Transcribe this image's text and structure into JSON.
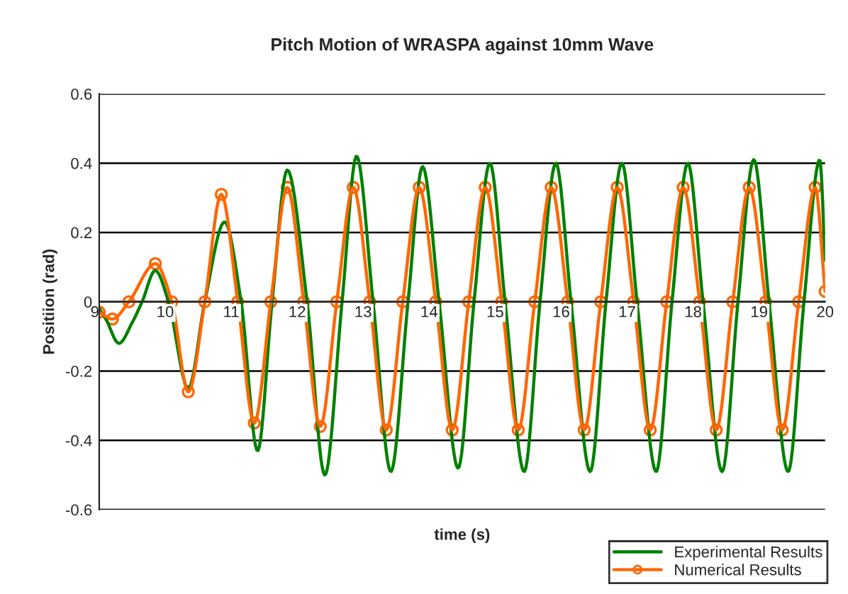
{
  "chart_data": {
    "type": "line",
    "title": "Pitch Motion of WRASPA against 10mm Wave",
    "xlabel": "time (s)",
    "ylabel": "Positiion (rad)",
    "xlim": [
      9,
      20
    ],
    "xticks": [
      9,
      10,
      11,
      12,
      13,
      14,
      15,
      16,
      17,
      18,
      19,
      20
    ],
    "ylim": [
      -0.6,
      0.6
    ],
    "yticks": [
      -0.6,
      -0.4,
      -0.2,
      0,
      0.2,
      0.4,
      0.6
    ],
    "grid": "y",
    "legend": "bottom right",
    "series": [
      {
        "name": "Experimental Results",
        "color": "#008000",
        "marker": "none",
        "x": [
          9.0,
          9.1,
          9.3,
          9.5,
          9.65,
          9.85,
          10.05,
          10.35,
          10.6,
          10.9,
          11.15,
          11.4,
          11.62,
          11.85,
          12.15,
          12.42,
          12.68,
          12.9,
          13.15,
          13.42,
          13.68,
          13.9,
          14.15,
          14.44,
          14.68,
          14.92,
          15.15,
          15.44,
          15.68,
          15.92,
          16.15,
          16.44,
          16.68,
          16.92,
          17.15,
          17.44,
          17.68,
          17.92,
          18.15,
          18.44,
          18.68,
          18.92,
          19.15,
          19.44,
          19.68,
          19.92,
          20.0
        ],
        "values": [
          -0.02,
          -0.05,
          -0.12,
          -0.06,
          0.0,
          0.09,
          0.0,
          -0.25,
          0.0,
          0.23,
          0.0,
          -0.43,
          0.0,
          0.38,
          0.0,
          -0.5,
          0.0,
          0.42,
          0.0,
          -0.49,
          0.0,
          0.39,
          0.0,
          -0.48,
          0.0,
          0.4,
          0.0,
          -0.49,
          0.0,
          0.4,
          0.0,
          -0.49,
          0.0,
          0.4,
          0.0,
          -0.49,
          0.0,
          0.4,
          0.0,
          -0.49,
          0.0,
          0.41,
          0.0,
          -0.49,
          0.0,
          0.41,
          0.12
        ]
      },
      {
        "name": "Numerical Results",
        "color": "#ff6600",
        "marker": "circle",
        "x": [
          9.0,
          9.2,
          9.45,
          9.85,
          10.1,
          10.35,
          10.6,
          10.85,
          11.1,
          11.35,
          11.6,
          11.85,
          12.1,
          12.35,
          12.6,
          12.85,
          13.1,
          13.35,
          13.6,
          13.85,
          14.1,
          14.35,
          14.6,
          14.85,
          15.1,
          15.35,
          15.6,
          15.85,
          16.1,
          16.35,
          16.6,
          16.85,
          17.1,
          17.35,
          17.6,
          17.85,
          18.1,
          18.35,
          18.6,
          18.85,
          19.1,
          19.35,
          19.6,
          19.85,
          20.0
        ],
        "values": [
          -0.03,
          -0.05,
          0.0,
          0.11,
          0.0,
          -0.26,
          0.0,
          0.31,
          0.0,
          -0.35,
          0.0,
          0.33,
          0.0,
          -0.36,
          0.0,
          0.33,
          0.0,
          -0.37,
          0.0,
          0.33,
          0.0,
          -0.37,
          0.0,
          0.33,
          0.0,
          -0.37,
          0.0,
          0.33,
          0.0,
          -0.37,
          0.0,
          0.33,
          0.0,
          -0.37,
          0.0,
          0.33,
          0.0,
          -0.37,
          0.0,
          0.33,
          0.0,
          -0.37,
          0.0,
          0.33,
          0.03
        ]
      }
    ]
  }
}
